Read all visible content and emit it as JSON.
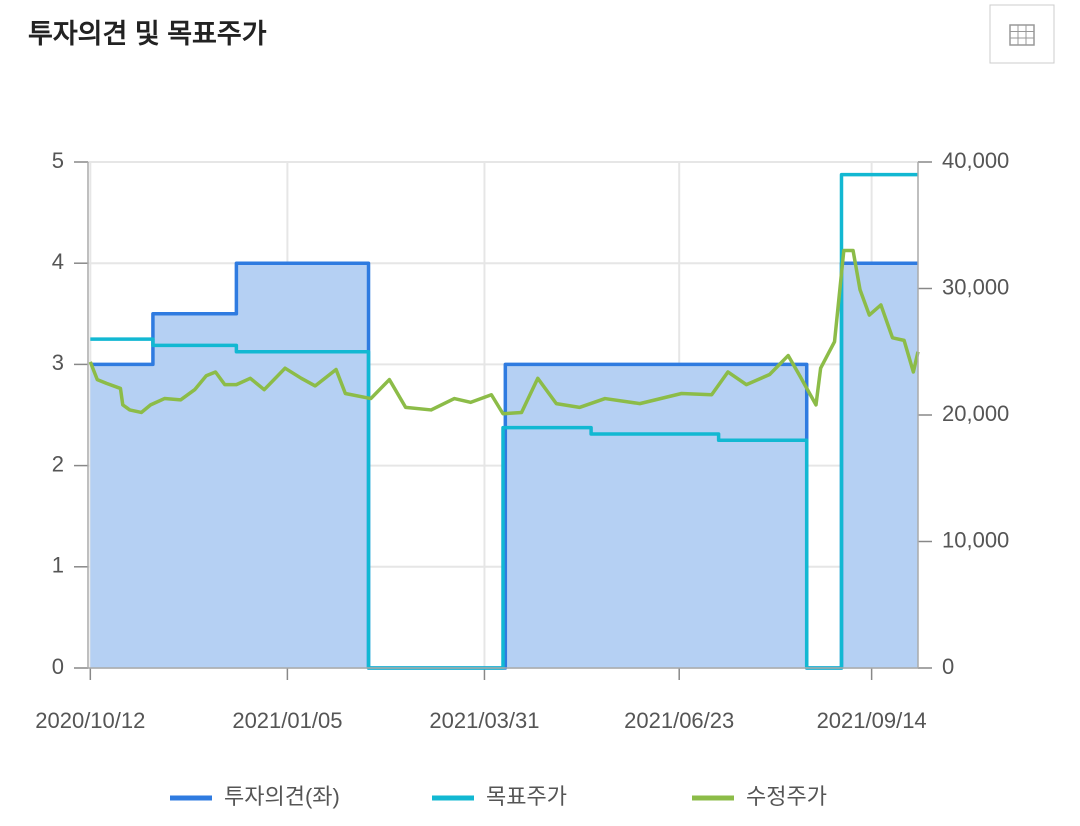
{
  "chart_data": {
    "type": "combo",
    "title": "투자의견 및 목표주가",
    "xlim": [
      "2020/10/11",
      "2021/10/04"
    ],
    "xticks": [
      "2020/10/12",
      "2021/01/05",
      "2021/03/31",
      "2021/06/23",
      "2021/09/14"
    ],
    "ylim": [
      0,
      5
    ],
    "yticks": [
      0,
      1,
      2,
      3,
      4,
      5
    ],
    "y2lim": [
      0,
      40000
    ],
    "y2ticks": [
      0,
      {
        "value": 10000,
        "label": "10,000"
      },
      {
        "value": 20000,
        "label": "20,000"
      },
      {
        "value": 30000,
        "label": "30,000"
      },
      {
        "value": 40000,
        "label": "40,000"
      }
    ],
    "grid": true,
    "series": [
      {
        "name": "투자의견(좌)",
        "color": "#2f7be0",
        "fill": "#b5d0f3",
        "step": true,
        "area": true,
        "axis": "y",
        "x": [
          "2020/10/12",
          "2020/11/08",
          "2020/12/14",
          "2021/02/09",
          "2021/04/09",
          "2021/08/17",
          "2021/09/01",
          "2021/10/04"
        ],
        "values": [
          3,
          3.5,
          4,
          0,
          3,
          0,
          4,
          4
        ]
      },
      {
        "name": "목표주가",
        "color": "#12b8d2",
        "step": true,
        "area": false,
        "axis": "y2",
        "x": [
          "2020/10/12",
          "2020/11/08",
          "2020/12/14",
          "2021/02/09",
          "2021/04/08",
          "2021/05/16",
          "2021/07/10",
          "2021/08/17",
          "2021/09/01",
          "2021/10/04"
        ],
        "values": [
          26000,
          25500,
          25000,
          0,
          19000,
          18500,
          18000,
          0,
          39000,
          39000
        ]
      },
      {
        "name": "수정주가",
        "color": "#8cbc48",
        "step": false,
        "area": false,
        "axis": "y2",
        "x": [
          "2020/10/12",
          "2020/10/15",
          "2020/10/19",
          "2020/10/25",
          "2020/10/26",
          "2020/10/29",
          "2020/11/03",
          "2020/11/07",
          "2020/11/13",
          "2020/11/20",
          "2020/11/26",
          "2020/12/01",
          "2020/12/05",
          "2020/12/09",
          "2020/12/14",
          "2020/12/20",
          "2020/12/26",
          "2021/01/04",
          "2021/01/11",
          "2021/01/17",
          "2021/01/26",
          "2021/01/30",
          "2021/02/10",
          "2021/02/18",
          "2021/02/25",
          "2021/03/08",
          "2021/03/18",
          "2021/03/25",
          "2021/04/03",
          "2021/04/08",
          "2021/04/16",
          "2021/04/23",
          "2021/05/01",
          "2021/05/11",
          "2021/05/22",
          "2021/06/06",
          "2021/06/24",
          "2021/07/07",
          "2021/07/14",
          "2021/07/22",
          "2021/08/01",
          "2021/08/09",
          "2021/08/14",
          "2021/08/21",
          "2021/08/23",
          "2021/08/29",
          "2021/09/02",
          "2021/09/06",
          "2021/09/09",
          "2021/09/13",
          "2021/09/18",
          "2021/09/23",
          "2021/09/28",
          "2021/10/02",
          "2021/10/04"
        ],
        "values": [
          24200,
          22800,
          22500,
          22100,
          20800,
          20400,
          20200,
          20800,
          21300,
          21200,
          22000,
          23100,
          23400,
          22400,
          22400,
          22900,
          22000,
          23700,
          22900,
          22300,
          23600,
          21700,
          21300,
          22800,
          20600,
          20400,
          21300,
          21000,
          21600,
          20100,
          20200,
          22900,
          20900,
          20600,
          21300,
          20900,
          21700,
          21600,
          23400,
          22400,
          23200,
          24700,
          23100,
          20800,
          23700,
          25800,
          33000,
          33000,
          29900,
          27900,
          28700,
          26100,
          25900,
          23400,
          25000
        ]
      }
    ]
  }
}
